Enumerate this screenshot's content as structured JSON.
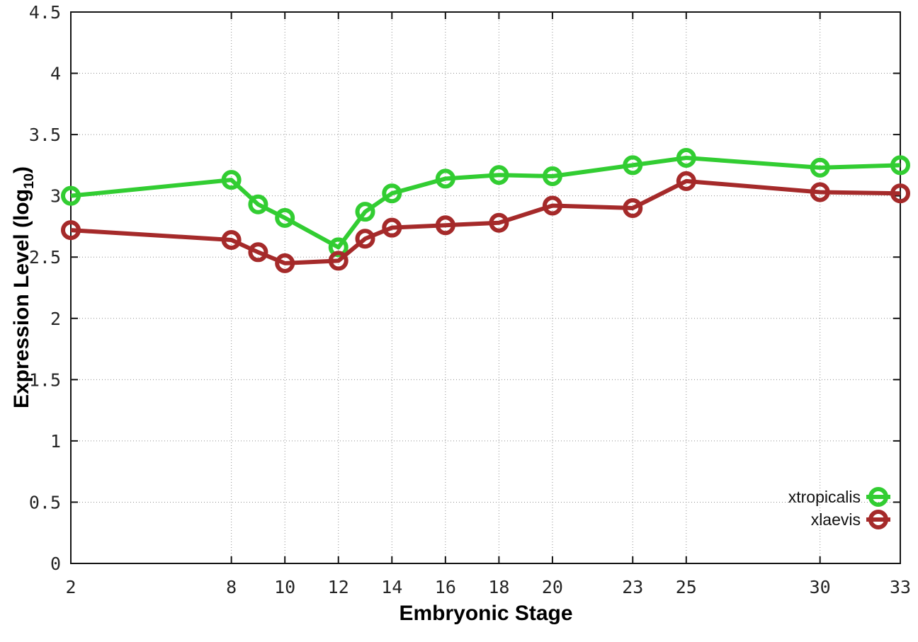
{
  "chart_data": {
    "type": "line",
    "xlabel": "Embryonic Stage",
    "ylabel": {
      "text": "Expression Level (log10)",
      "prefix": "Expression Level (log",
      "subscript": "10",
      "suffix": ")"
    },
    "xlim": [
      2,
      33
    ],
    "ylim": [
      0,
      4.5
    ],
    "xticks": [
      2,
      8,
      10,
      12,
      14,
      16,
      18,
      20,
      23,
      25,
      30,
      33
    ],
    "xtick_labels": [
      "2",
      "8",
      "10",
      "12",
      "14",
      "16",
      "18",
      "20",
      "23",
      "25",
      "30",
      "33"
    ],
    "yticks": [
      0,
      0.5,
      1,
      1.5,
      2,
      2.5,
      3,
      3.5,
      4,
      4.5
    ],
    "ytick_labels": [
      "0",
      "0.5",
      "1",
      "1.5",
      "2",
      "2.5",
      "3",
      "3.5",
      "4",
      "4.5"
    ],
    "grid": "dotted",
    "legend_position": "bottom-right",
    "marker": "open-circle",
    "x": [
      2,
      8,
      9,
      10,
      12,
      13,
      14,
      16,
      18,
      20,
      23,
      25,
      30,
      33
    ],
    "series": [
      {
        "name": "xtropicalis",
        "color": "#32CD32",
        "values": [
          3.0,
          3.13,
          2.93,
          2.82,
          2.58,
          2.87,
          3.02,
          3.14,
          3.17,
          3.16,
          3.25,
          3.31,
          3.23,
          3.25
        ]
      },
      {
        "name": "xlaevis",
        "color": "#A52A2A",
        "values": [
          2.72,
          2.64,
          2.54,
          2.45,
          2.47,
          2.65,
          2.74,
          2.76,
          2.78,
          2.92,
          2.9,
          3.12,
          3.03,
          3.02
        ]
      }
    ]
  }
}
